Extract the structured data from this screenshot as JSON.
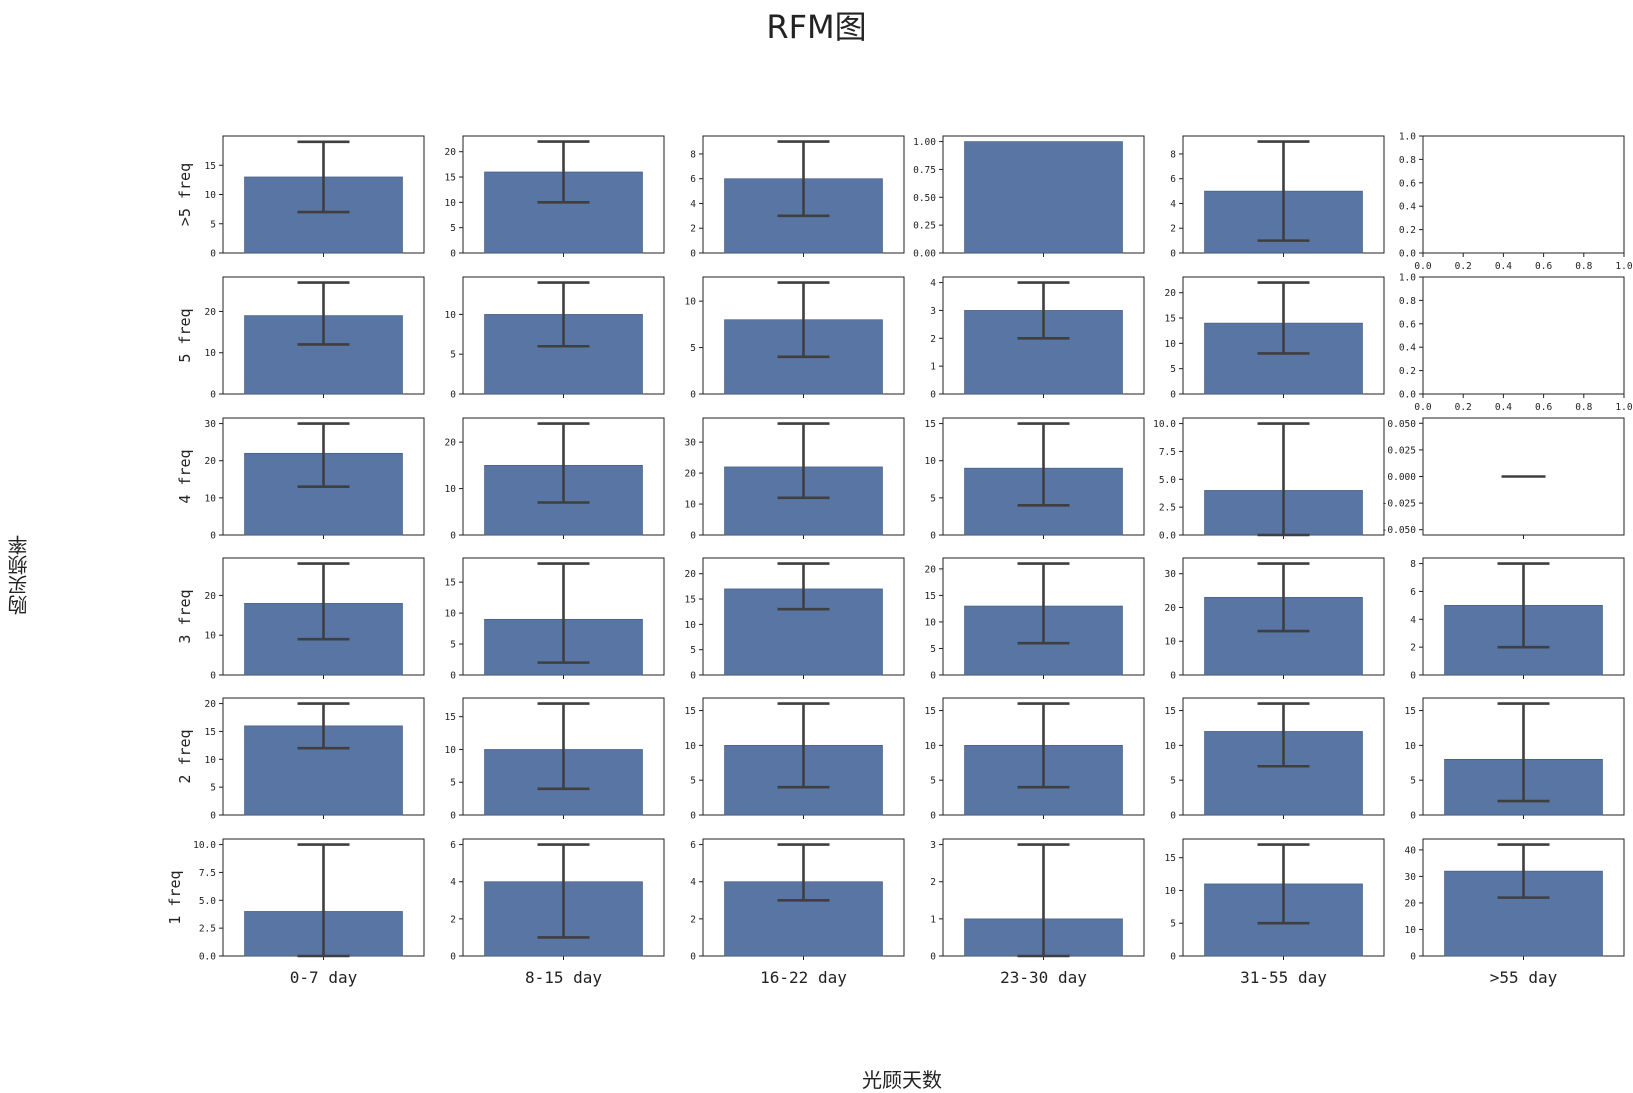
{
  "chart_data": {
    "type": "bar",
    "title": "RFM图",
    "xlabel": "光顾天数",
    "ylabel": "购买频率",
    "columns": [
      "0-7 day",
      "8-15 day",
      "16-22 day",
      "23-30 day",
      "31-55 day",
      ">55 day"
    ],
    "rows": [
      ">5 freq",
      "5 freq",
      "4 freq",
      "3 freq",
      "2 freq",
      "1 freq"
    ],
    "cells": [
      [
        {
          "value": 13,
          "err": [
            7,
            19
          ],
          "ylim": [
            0,
            20
          ],
          "yticks": [
            "0",
            "5",
            "10",
            "15"
          ]
        },
        {
          "value": 16,
          "err": [
            10,
            22
          ],
          "ylim": [
            0,
            23.1
          ],
          "yticks": [
            "0",
            "5",
            "10",
            "15",
            "20"
          ]
        },
        {
          "value": 6,
          "err": [
            3,
            9
          ],
          "ylim": [
            0,
            9.45
          ],
          "yticks": [
            "0",
            "2",
            "4",
            "6",
            "8"
          ]
        },
        {
          "value": 1,
          "err": null,
          "ylim": [
            0,
            1.05
          ],
          "yticks": [
            "0.00",
            "0.25",
            "0.50",
            "0.75",
            "1.00"
          ]
        },
        {
          "value": 5,
          "err": [
            1,
            9
          ],
          "ylim": [
            0,
            9.45
          ],
          "yticks": [
            "0",
            "2",
            "4",
            "6",
            "8"
          ]
        },
        {
          "empty": true,
          "ylim": [
            0,
            1
          ],
          "yticks": [
            "0.0",
            "0.2",
            "0.4",
            "0.6",
            "0.8",
            "1.0"
          ],
          "xticks": [
            "0.0",
            "0.2",
            "0.4",
            "0.6",
            "0.8",
            "1.0"
          ]
        }
      ],
      [
        {
          "value": 19,
          "err": [
            12,
            27
          ],
          "ylim": [
            0,
            28.35
          ],
          "yticks": [
            "0",
            "10",
            "20"
          ]
        },
        {
          "value": 10,
          "err": [
            6,
            14
          ],
          "ylim": [
            0,
            14.7
          ],
          "yticks": [
            "0",
            "5",
            "10"
          ]
        },
        {
          "value": 8,
          "err": [
            4,
            12
          ],
          "ylim": [
            0,
            12.6
          ],
          "yticks": [
            "0",
            "5",
            "10"
          ]
        },
        {
          "value": 3,
          "err": [
            2,
            4
          ],
          "ylim": [
            0,
            4.2
          ],
          "yticks": [
            "0",
            "1",
            "2",
            "3",
            "4"
          ]
        },
        {
          "value": 14,
          "err": [
            8,
            22
          ],
          "ylim": [
            0,
            23.1
          ],
          "yticks": [
            "0",
            "5",
            "10",
            "15",
            "20"
          ]
        },
        {
          "empty": true,
          "ylim": [
            0,
            1
          ],
          "yticks": [
            "0.0",
            "0.2",
            "0.4",
            "0.6",
            "0.8",
            "1.0"
          ],
          "xticks": [
            "0.0",
            "0.2",
            "0.4",
            "0.6",
            "0.8",
            "1.0"
          ]
        }
      ],
      [
        {
          "value": 22,
          "err": [
            13,
            30
          ],
          "ylim": [
            0,
            31.5
          ],
          "yticks": [
            "0",
            "10",
            "20",
            "30"
          ]
        },
        {
          "value": 15,
          "err": [
            7,
            24
          ],
          "ylim": [
            0,
            25.2
          ],
          "yticks": [
            "0",
            "10",
            "20"
          ]
        },
        {
          "value": 22,
          "err": [
            12,
            36
          ],
          "ylim": [
            0,
            37.8
          ],
          "yticks": [
            "0",
            "10",
            "20",
            "30"
          ]
        },
        {
          "value": 9,
          "err": [
            4,
            15
          ],
          "ylim": [
            0,
            15.75
          ],
          "yticks": [
            "0",
            "5",
            "10",
            "15"
          ]
        },
        {
          "value": 4,
          "err": [
            0,
            10
          ],
          "ylim": [
            0,
            10.5
          ],
          "yticks": [
            "0.0",
            "2.5",
            "5.0",
            "7.5",
            "10.0"
          ]
        },
        {
          "value": 0,
          "err": null,
          "zeroline": true,
          "ylim": [
            -0.055,
            0.055
          ],
          "yticks": [
            "-0.050",
            "-0.025",
            "0.000",
            "0.025",
            "0.050"
          ],
          "ytickvals": [
            -0.05,
            -0.025,
            0,
            0.025,
            0.05
          ]
        }
      ],
      [
        {
          "value": 18,
          "err": [
            9,
            28
          ],
          "ylim": [
            0,
            29.4
          ],
          "yticks": [
            "0",
            "10",
            "20"
          ]
        },
        {
          "value": 9,
          "err": [
            2,
            18
          ],
          "ylim": [
            0,
            18.9
          ],
          "yticks": [
            "0",
            "5",
            "10",
            "15"
          ]
        },
        {
          "value": 17,
          "err": [
            13,
            22
          ],
          "ylim": [
            0,
            23.1
          ],
          "yticks": [
            "0",
            "5",
            "10",
            "15",
            "20"
          ]
        },
        {
          "value": 13,
          "err": [
            6,
            21
          ],
          "ylim": [
            0,
            22.05
          ],
          "yticks": [
            "0",
            "5",
            "10",
            "15",
            "20"
          ]
        },
        {
          "value": 23,
          "err": [
            13,
            33
          ],
          "ylim": [
            0,
            34.65
          ],
          "yticks": [
            "0",
            "10",
            "20",
            "30"
          ]
        },
        {
          "value": 5,
          "err": [
            2,
            8
          ],
          "ylim": [
            0,
            8.4
          ],
          "yticks": [
            "0",
            "2",
            "4",
            "6",
            "8"
          ]
        }
      ],
      [
        {
          "value": 16,
          "err": [
            12,
            20
          ],
          "ylim": [
            0,
            21
          ],
          "yticks": [
            "0",
            "5",
            "10",
            "15",
            "20"
          ]
        },
        {
          "value": 10,
          "err": [
            4,
            17
          ],
          "ylim": [
            0,
            17.85
          ],
          "yticks": [
            "0",
            "5",
            "10",
            "15"
          ]
        },
        {
          "value": 10,
          "err": [
            4,
            16
          ],
          "ylim": [
            0,
            16.8
          ],
          "yticks": [
            "0",
            "5",
            "10",
            "15"
          ]
        },
        {
          "value": 10,
          "err": [
            4,
            16
          ],
          "ylim": [
            0,
            16.8
          ],
          "yticks": [
            "0",
            "5",
            "10",
            "15"
          ]
        },
        {
          "value": 12,
          "err": [
            7,
            16
          ],
          "ylim": [
            0,
            16.8
          ],
          "yticks": [
            "0",
            "5",
            "10",
            "15"
          ]
        },
        {
          "value": 8,
          "err": [
            2,
            16
          ],
          "ylim": [
            0,
            16.8
          ],
          "yticks": [
            "0",
            "5",
            "10",
            "15"
          ]
        }
      ],
      [
        {
          "value": 4,
          "err": [
            0,
            10
          ],
          "ylim": [
            0,
            10.5
          ],
          "yticks": [
            "0.0",
            "2.5",
            "5.0",
            "7.5",
            "10.0"
          ]
        },
        {
          "value": 4,
          "err": [
            1,
            6
          ],
          "ylim": [
            0,
            6.3
          ],
          "yticks": [
            "0",
            "2",
            "4",
            "6"
          ]
        },
        {
          "value": 4,
          "err": [
            3,
            6
          ],
          "ylim": [
            0,
            6.3
          ],
          "yticks": [
            "0",
            "2",
            "4",
            "6"
          ]
        },
        {
          "value": 1,
          "err": [
            0,
            3
          ],
          "ylim": [
            0,
            3.15
          ],
          "yticks": [
            "0",
            "1",
            "2",
            "3"
          ]
        },
        {
          "value": 11,
          "err": [
            5,
            17
          ],
          "ylim": [
            0,
            17.85
          ],
          "yticks": [
            "0",
            "5",
            "10",
            "15"
          ]
        },
        {
          "value": 32,
          "err": [
            22,
            42
          ],
          "ylim": [
            0,
            44.1
          ],
          "yticks": [
            "0",
            "10",
            "20",
            "30",
            "40"
          ]
        }
      ]
    ],
    "bar_color": "#5875a4",
    "err_color": "#3f3f3f",
    "grid": false
  }
}
